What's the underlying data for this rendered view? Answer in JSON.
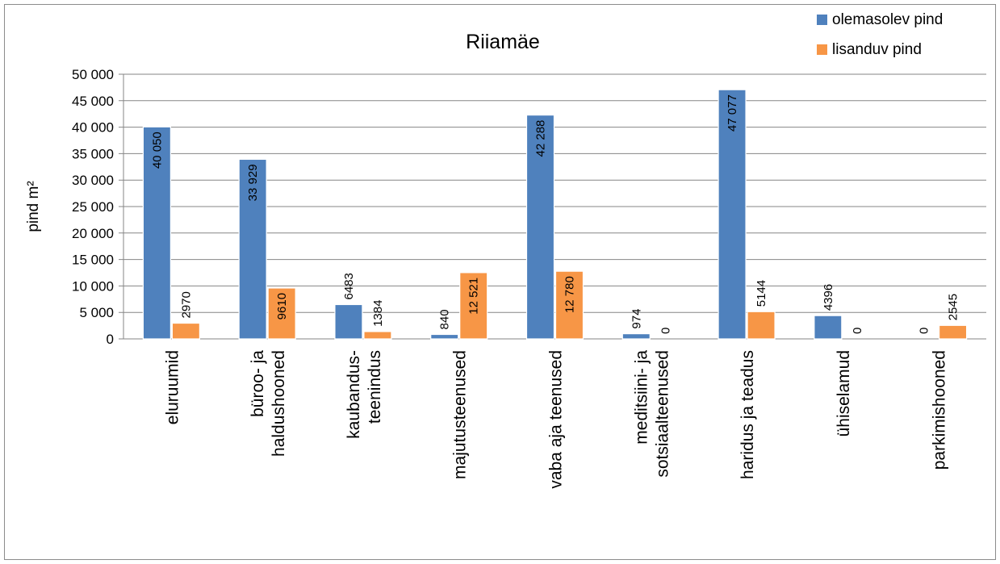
{
  "chart_data": {
    "type": "bar",
    "title": "Riiamäe",
    "ylabel": "pind m²",
    "xlabel": "",
    "ylim": [
      0,
      50000
    ],
    "yticks": [
      0,
      5000,
      10000,
      15000,
      20000,
      25000,
      30000,
      35000,
      40000,
      45000,
      50000
    ],
    "ytick_labels": [
      "0",
      "5 000",
      "10 000",
      "15 000",
      "20 000",
      "25 000",
      "30 000",
      "35 000",
      "40 000",
      "45 000",
      "50 000"
    ],
    "grid": true,
    "legend_position": "top-right",
    "categories": [
      [
        "eluruumid"
      ],
      [
        "büroo- ja",
        "haldushooned"
      ],
      [
        "kaubandus-",
        "teenindus"
      ],
      [
        "majutusteenused"
      ],
      [
        "vaba aja teenused"
      ],
      [
        "meditsiini- ja",
        "sotsiaalteenused"
      ],
      [
        "haridus ja teadus"
      ],
      [
        "ühiselamud"
      ],
      [
        "parkimishooned"
      ]
    ],
    "series": [
      {
        "name": "olemasolev pind",
        "color": "#4f81bd",
        "values": [
          40050,
          33929,
          6483,
          840,
          42288,
          974,
          47077,
          4396,
          0
        ],
        "labels": [
          "40 050",
          "33 929",
          "6483",
          "840",
          "42 288",
          "974",
          "47 077",
          "4396",
          "0"
        ]
      },
      {
        "name": "lisanduv pind",
        "color": "#f79646",
        "values": [
          2970,
          9610,
          1384,
          12521,
          12780,
          0,
          5144,
          0,
          2545
        ],
        "labels": [
          "2970",
          "9610",
          "1384",
          "12 521",
          "12 780",
          "0",
          "5144",
          "0",
          "2545"
        ]
      }
    ]
  }
}
